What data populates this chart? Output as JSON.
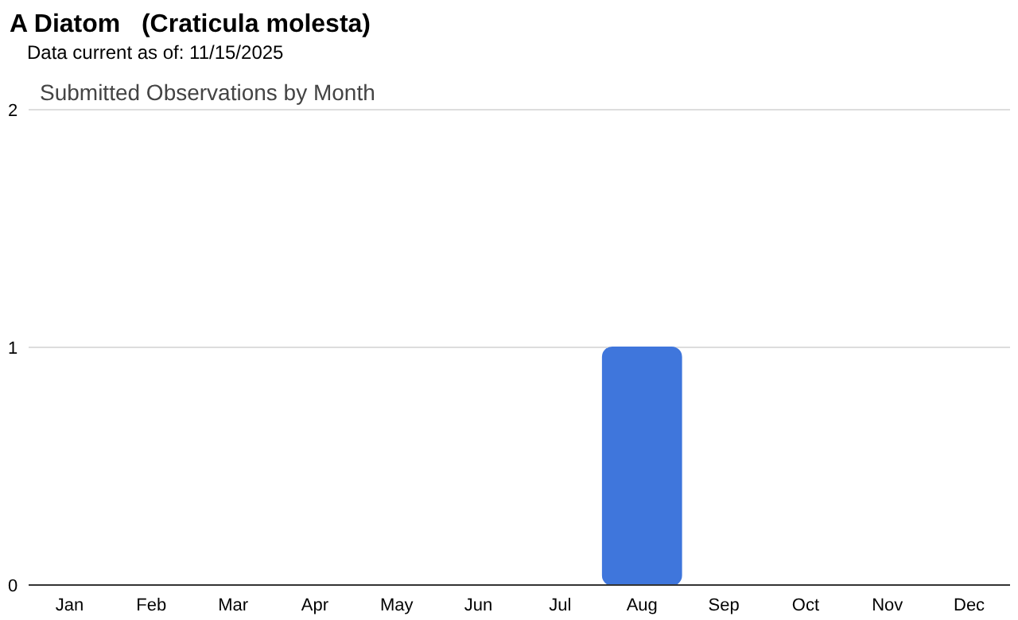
{
  "chart_data": {
    "type": "bar",
    "title": "A Diatom   (Craticula molesta)",
    "subtitle": "Data current as of: 11/15/2025",
    "annotations": [
      "Submitted Observations by Month"
    ],
    "categories": [
      "Jan",
      "Feb",
      "Mar",
      "Apr",
      "May",
      "Jun",
      "Jul",
      "Aug",
      "Sep",
      "Oct",
      "Nov",
      "Dec"
    ],
    "values": [
      0,
      0,
      0,
      0,
      0,
      0,
      0,
      1,
      0,
      0,
      0,
      0
    ],
    "color": "#3f76dc",
    "ylim": [
      0,
      2
    ],
    "yticks": [
      0,
      1,
      2
    ],
    "grid": "y"
  }
}
